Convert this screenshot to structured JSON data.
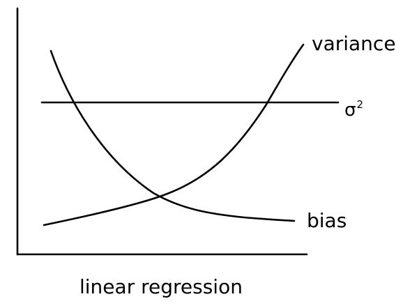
{
  "diagram": {
    "caption": "linear regression",
    "labels": {
      "variance": "variance",
      "sigma_base": "σ",
      "sigma_exp": "2",
      "bias": "bias"
    },
    "colors": {
      "stroke": "#000000",
      "background": "#ffffff"
    }
  }
}
